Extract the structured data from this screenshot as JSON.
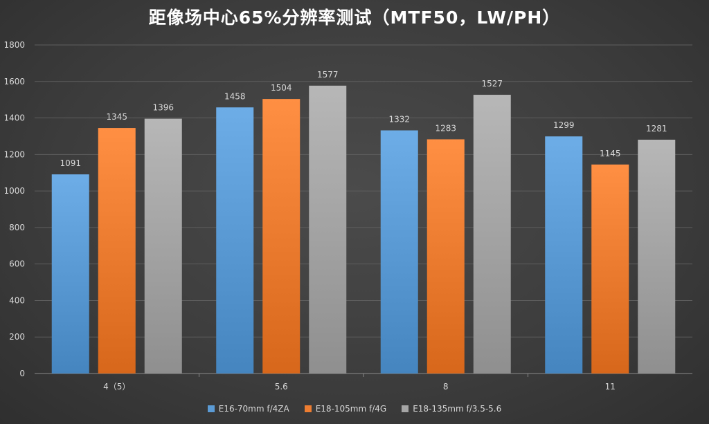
{
  "chart_data": {
    "type": "bar",
    "title": "距像场中心65%分辨率测试（MTF50，LW/PH）",
    "categories": [
      "4（5）",
      "5.6",
      "8",
      "11"
    ],
    "series": [
      {
        "name": "E16-70mm f/4ZA",
        "color": "#5b9bd5",
        "values": [
          1091,
          1458,
          1332,
          1299
        ]
      },
      {
        "name": "E18-105mm f/4G",
        "color": "#ed7d31",
        "values": [
          1345,
          1504,
          1283,
          1145
        ]
      },
      {
        "name": "E18-135mm f/3.5-5.6",
        "color": "#a5a5a5",
        "values": [
          1396,
          1577,
          1527,
          1281
        ]
      }
    ],
    "ylim": [
      0,
      1800
    ],
    "yticks": [
      0,
      200,
      400,
      600,
      800,
      1000,
      1200,
      1400,
      1600,
      1800
    ],
    "grid": true,
    "legend_position": "bottom"
  }
}
